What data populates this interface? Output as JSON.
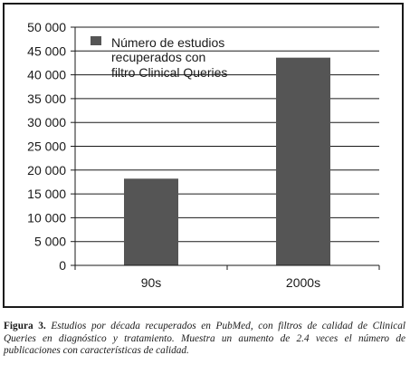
{
  "chart_data": {
    "type": "bar",
    "categories": [
      "90s",
      "2000s"
    ],
    "series": [
      {
        "name": "Número de estudios recuperados con filtro Clinical Queries",
        "values": [
          18200,
          43600
        ]
      }
    ],
    "ylim": [
      0,
      50000
    ],
    "yticks": [
      0,
      5000,
      10000,
      15000,
      20000,
      25000,
      30000,
      35000,
      40000,
      45000,
      50000
    ],
    "ytick_labels": [
      "0",
      "5 000",
      "10 000",
      "15 000",
      "20 000",
      "25 000",
      "30 000",
      "35 000",
      "40 000",
      "45 000",
      "50 000"
    ],
    "grid": "horizontal",
    "legend_position": "top-left",
    "legend_lines": [
      "Número de estudios",
      "recuperados con",
      "filtro Clinical Queries"
    ],
    "bar_color": "#555555"
  },
  "caption": {
    "label": "Figura 3.",
    "text": "Estudios por década recuperados en PubMed, con filtros de calidad de Clinical Queries en diagnóstico y tratamiento. Muestra un aumento de 2.4 veces el número de publicaciones con características de calidad."
  }
}
